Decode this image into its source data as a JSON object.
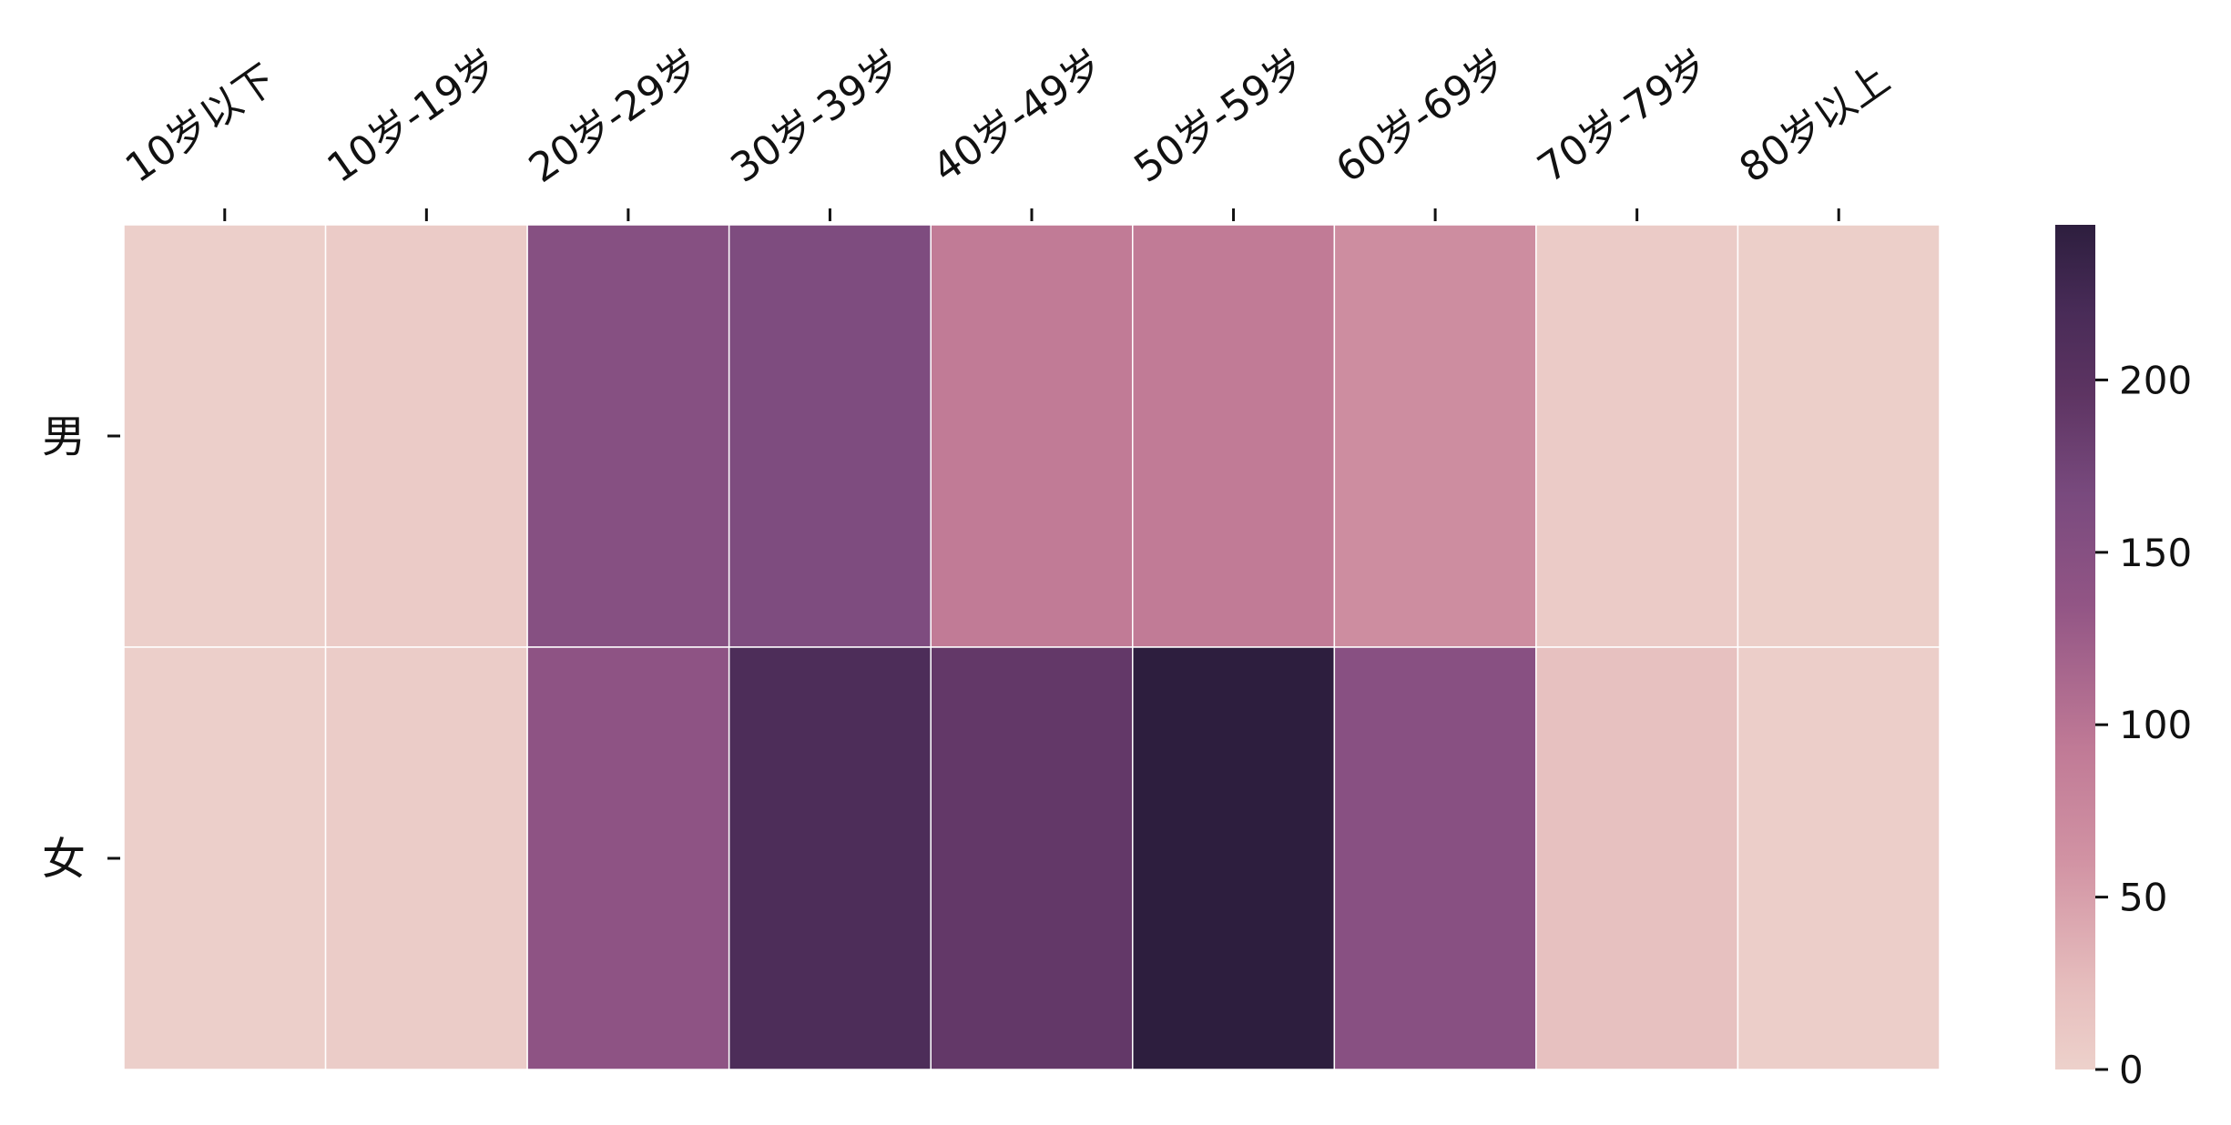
{
  "chart_data": {
    "type": "heatmap",
    "x_categories": [
      "10岁以下",
      "10岁-19岁",
      "20岁-29岁",
      "30岁-39岁",
      "40岁-49岁",
      "50岁-59岁",
      "60岁-69岁",
      "70岁-79岁",
      "80岁以上"
    ],
    "y_categories": [
      "男",
      "女"
    ],
    "values": [
      [
        2,
        7,
        150,
        160,
        92,
        92,
        68,
        7,
        3
      ],
      [
        2,
        6,
        140,
        215,
        190,
        245,
        148,
        20,
        4
      ]
    ],
    "colorbar": {
      "range": [
        0,
        245
      ],
      "ticks": [
        0,
        50,
        100,
        150,
        200
      ],
      "tick_labels": [
        "0",
        "50",
        "100",
        "150",
        "200"
      ]
    },
    "x_axis_position": "top",
    "grid": false,
    "cell_separators": "white"
  }
}
